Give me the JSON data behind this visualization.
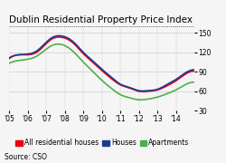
{
  "title": "Dublin Residential Property Price Index",
  "source": "Source: CSO",
  "ylim": [
    30,
    160
  ],
  "yticks": [
    30,
    60,
    90,
    120,
    150
  ],
  "xtick_labels": [
    "'05",
    "'06",
    "'07",
    "'08",
    "'09",
    "'10",
    "'11",
    "'12",
    "'13",
    "'14"
  ],
  "xtick_positions": [
    2005,
    2006,
    2007,
    2008,
    2009,
    2010,
    2011,
    2012,
    2013,
    2014
  ],
  "xlim": [
    2005.0,
    2015.0
  ],
  "x_all": [
    2005.0,
    2006.0,
    2006.5,
    2007.3,
    2007.8,
    2008.5,
    2009.0,
    2009.5,
    2010.0,
    2010.5,
    2011.0,
    2011.5,
    2012.0,
    2012.5,
    2013.0,
    2013.5,
    2014.0,
    2014.5,
    2015.0
  ],
  "y_all": [
    110,
    116,
    120,
    140,
    143,
    133,
    118,
    105,
    92,
    80,
    70,
    65,
    60,
    60,
    62,
    68,
    76,
    86,
    91
  ],
  "x_hou": [
    2005.0,
    2006.0,
    2006.5,
    2007.3,
    2007.8,
    2008.5,
    2009.0,
    2009.5,
    2010.0,
    2010.5,
    2011.0,
    2011.5,
    2012.0,
    2012.5,
    2013.0,
    2013.5,
    2014.0,
    2014.5,
    2015.0
  ],
  "y_hou": [
    111,
    117,
    122,
    142,
    145,
    135,
    120,
    107,
    94,
    82,
    71,
    66,
    61,
    61,
    63,
    70,
    78,
    88,
    93
  ],
  "x_apt": [
    2005.0,
    2006.0,
    2006.5,
    2007.3,
    2007.8,
    2008.5,
    2009.0,
    2009.5,
    2010.0,
    2010.5,
    2011.0,
    2011.5,
    2012.0,
    2012.5,
    2013.0,
    2013.5,
    2014.0,
    2014.5,
    2015.0
  ],
  "y_apt": [
    103,
    109,
    114,
    130,
    132,
    120,
    105,
    91,
    77,
    65,
    55,
    50,
    47,
    48,
    51,
    56,
    62,
    70,
    74
  ],
  "color_all": "#e8000d",
  "color_houses": "#1f3a93",
  "color_apartments": "#4daf4a",
  "bg_color": "#f5f5f5",
  "title_fontsize": 7.5,
  "legend_fontsize": 5.5,
  "tick_fontsize": 5.5
}
